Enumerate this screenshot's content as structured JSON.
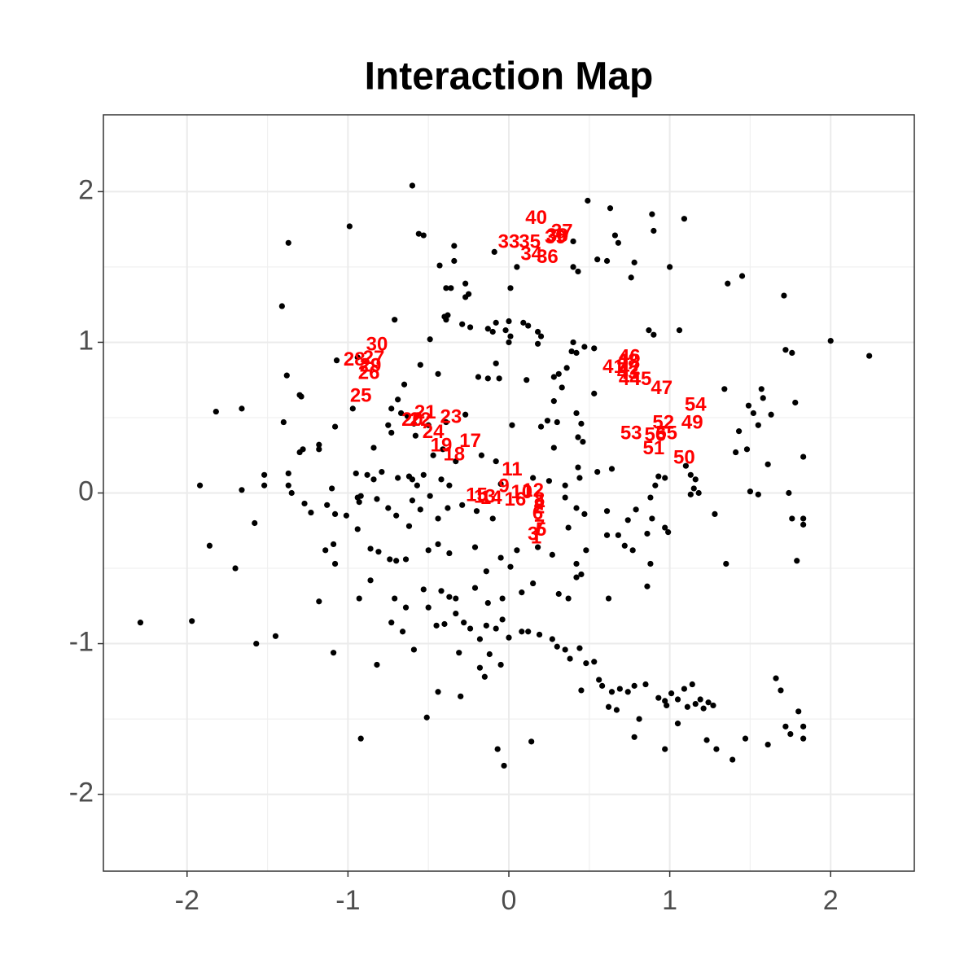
{
  "chart_data": {
    "type": "scatter",
    "title": "Interaction Map",
    "xlim": [
      -2.52,
      2.52
    ],
    "ylim": [
      -2.51,
      2.51
    ],
    "xticks": [
      -2,
      -1,
      0,
      1,
      2
    ],
    "yticks": [
      -2,
      -1,
      0,
      1,
      2
    ],
    "xminor": [
      -1.5,
      -0.5,
      0.5,
      1.5
    ],
    "yminor": [
      -1.5,
      -0.5,
      0.5,
      1.5
    ],
    "grid": true,
    "series": [
      {
        "color": "#000000",
        "x": [
          -0.6,
          -1.37,
          -0.99,
          -0.56,
          -0.53,
          0.49,
          0.63,
          0.89,
          1.09,
          0.66,
          0.68,
          0.9,
          0.4,
          -0.34,
          -0.09,
          0.05,
          -0.43,
          -0.34,
          0.4,
          0.55,
          0.61,
          0.78,
          1.0,
          0.43,
          0.76,
          1.36,
          1.45,
          1.71,
          -0.39,
          -0.36,
          -0.27,
          -0.25,
          -0.27,
          0.01,
          -1.41,
          -0.71,
          -0.4,
          -0.38,
          -0.39,
          -0.29,
          -0.24,
          -0.13,
          -0.1,
          -0.08,
          0.0,
          -0.02,
          0.01,
          0.0,
          0.09,
          0.12,
          0.18,
          0.18,
          0.2,
          -0.49,
          0.4,
          0.39,
          0.42,
          0.47,
          0.53,
          0.87,
          0.9,
          1.06,
          1.72,
          1.76,
          2.0,
          2.24,
          -1.07,
          -0.94,
          -0.55,
          -0.44,
          -0.08,
          -0.13,
          -0.06,
          -0.19,
          0.11,
          0.36,
          0.31,
          0.28,
          -1.38,
          -1.3,
          -1.29,
          -0.65,
          -0.69,
          -1.82,
          -1.66,
          -1.4,
          -1.08,
          -0.97,
          -0.73,
          -0.67,
          -0.63,
          -0.59,
          -0.5,
          -0.39,
          -0.27,
          0.02,
          0.2,
          0.24,
          0.3,
          0.42,
          0.45,
          0.28,
          0.33,
          0.53,
          1.34,
          1.57,
          1.58,
          1.49,
          1.52,
          1.63,
          1.78,
          1.43,
          1.55,
          -1.18,
          -1.18,
          -1.28,
          -1.3,
          -0.84,
          -0.75,
          -0.73,
          -0.58,
          -0.47,
          -0.41,
          -0.33,
          -0.17,
          -0.08,
          0.28,
          0.43,
          0.46,
          0.43,
          0.44,
          0.55,
          0.64,
          0.93,
          0.97,
          1.1,
          1.13,
          1.16,
          1.41,
          1.48,
          1.61,
          1.83,
          -1.37,
          -1.37,
          -1.52,
          -1.52,
          -1.92,
          -1.66,
          -0.95,
          -0.88,
          -0.84,
          -0.79,
          -0.69,
          -0.62,
          -0.6,
          -0.53,
          -0.57,
          -0.42,
          -0.37,
          -0.05,
          0.15,
          0.25,
          0.35,
          1.15,
          1.18,
          1.13,
          0.91,
          0.88,
          1.5,
          1.55,
          1.74,
          -1.35,
          -1.27,
          -1.23,
          -1.13,
          -1.1,
          -1.08,
          -1.01,
          -0.94,
          -0.93,
          -0.92,
          -0.82,
          -0.75,
          -0.7,
          -0.6,
          -0.55,
          -0.49,
          -0.44,
          -0.38,
          -0.29,
          -0.2,
          -0.1,
          0.35,
          0.42,
          0.47,
          0.61,
          0.74,
          0.79,
          0.89,
          0.97,
          1.28,
          1.76,
          1.83,
          1.83,
          -1.58,
          -1.86,
          -1.7,
          -1.14,
          -1.09,
          -1.08,
          -0.94,
          -0.86,
          -0.81,
          -0.74,
          -0.7,
          -0.64,
          -0.62,
          -0.5,
          -0.44,
          -0.37,
          -0.21,
          -0.05,
          0.01,
          0.05,
          0.18,
          0.27,
          0.37,
          0.42,
          0.48,
          0.61,
          0.68,
          0.72,
          0.77,
          0.86,
          0.88,
          0.99,
          1.35,
          1.79,
          -1.18,
          -0.93,
          -0.86,
          -0.71,
          -0.64,
          -0.53,
          -0.42,
          -0.37,
          -0.33,
          -0.21,
          -0.14,
          -0.13,
          -0.04,
          0.08,
          0.15,
          0.31,
          0.37,
          0.42,
          0.45,
          0.62,
          0.86,
          -1.45,
          -1.57,
          -2.29,
          -1.97,
          -1.09,
          -0.82,
          -0.73,
          -0.66,
          -0.59,
          -0.5,
          -0.45,
          -0.4,
          -0.33,
          -0.28,
          -0.24,
          -0.18,
          -0.14,
          -0.08,
          -0.04,
          0.0,
          0.08,
          0.12,
          0.19,
          0.27,
          0.3,
          0.35,
          0.38,
          0.44,
          0.48,
          0.53,
          0.56,
          0.58,
          0.64,
          0.69,
          0.74,
          0.78,
          0.85,
          0.93,
          0.97,
          1.01,
          1.05,
          1.09,
          1.11,
          1.14,
          1.16,
          1.19,
          1.21,
          1.24,
          1.27,
          0.45,
          0.62,
          0.67,
          0.81,
          0.98,
          1.05,
          1.66,
          1.69,
          1.72,
          1.75,
          1.8,
          1.83,
          1.83,
          1.61,
          1.47,
          1.39,
          1.29,
          1.23,
          0.97,
          0.78,
          -0.92,
          -0.51,
          -0.44,
          -0.3,
          -0.15,
          -0.07,
          -0.03,
          0.14,
          -0.12,
          -0.05,
          -0.18,
          -0.31
        ],
        "y": [
          2.04,
          1.66,
          1.77,
          1.72,
          1.71,
          1.94,
          1.89,
          1.85,
          1.82,
          1.71,
          1.66,
          1.74,
          1.67,
          1.64,
          1.6,
          1.5,
          1.51,
          1.54,
          1.5,
          1.55,
          1.54,
          1.53,
          1.5,
          1.47,
          1.43,
          1.39,
          1.44,
          1.31,
          1.36,
          1.36,
          1.39,
          1.32,
          1.3,
          1.36,
          1.24,
          1.15,
          1.17,
          1.18,
          1.15,
          1.12,
          1.1,
          1.09,
          1.07,
          1.13,
          1.14,
          1.08,
          1.04,
          1.0,
          1.13,
          1.11,
          1.07,
          0.99,
          1.04,
          1.02,
          1.0,
          0.94,
          0.93,
          0.97,
          0.96,
          1.08,
          1.05,
          1.08,
          0.95,
          0.93,
          1.01,
          0.91,
          0.88,
          0.9,
          0.85,
          0.79,
          0.86,
          0.76,
          0.76,
          0.77,
          0.75,
          0.83,
          0.79,
          0.77,
          0.78,
          0.65,
          0.64,
          0.72,
          0.62,
          0.54,
          0.56,
          0.47,
          0.44,
          0.56,
          0.56,
          0.53,
          0.51,
          0.46,
          0.45,
          0.47,
          0.52,
          0.45,
          0.44,
          0.48,
          0.47,
          0.53,
          0.46,
          0.61,
          0.7,
          0.66,
          0.69,
          0.69,
          0.63,
          0.58,
          0.53,
          0.52,
          0.6,
          0.41,
          0.45,
          0.32,
          0.29,
          0.29,
          0.27,
          0.3,
          0.45,
          0.4,
          0.38,
          0.25,
          0.29,
          0.21,
          0.25,
          0.21,
          0.3,
          0.37,
          0.34,
          0.17,
          0.1,
          0.14,
          0.16,
          0.11,
          0.1,
          0.18,
          0.12,
          0.09,
          0.27,
          0.29,
          0.19,
          0.24,
          0.13,
          0.05,
          0.12,
          0.05,
          0.05,
          0.02,
          0.13,
          0.12,
          0.09,
          0.14,
          0.1,
          0.11,
          0.09,
          0.12,
          0.05,
          0.09,
          0.05,
          0.06,
          0.1,
          0.08,
          0.05,
          0.03,
          0.0,
          -0.01,
          0.05,
          -0.03,
          0.01,
          -0.01,
          0.0,
          0.0,
          -0.07,
          -0.13,
          -0.08,
          0.03,
          -0.14,
          -0.15,
          -0.03,
          -0.06,
          -0.02,
          -0.04,
          -0.1,
          -0.15,
          -0.05,
          -0.11,
          -0.02,
          -0.17,
          -0.1,
          -0.08,
          -0.12,
          -0.17,
          -0.03,
          -0.1,
          -0.14,
          -0.12,
          -0.18,
          -0.11,
          -0.17,
          -0.23,
          -0.14,
          -0.17,
          -0.17,
          -0.21,
          -0.2,
          -0.35,
          -0.5,
          -0.38,
          -0.34,
          -0.47,
          -0.24,
          -0.37,
          -0.39,
          -0.44,
          -0.45,
          -0.44,
          -0.22,
          -0.38,
          -0.34,
          -0.4,
          -0.36,
          -0.43,
          -0.49,
          -0.38,
          -0.36,
          -0.41,
          -0.23,
          -0.47,
          -0.38,
          -0.28,
          -0.28,
          -0.35,
          -0.38,
          -0.27,
          -0.47,
          -0.26,
          -0.47,
          -0.45,
          -0.72,
          -0.7,
          -0.58,
          -0.7,
          -0.76,
          -0.64,
          -0.65,
          -0.69,
          -0.7,
          -0.63,
          -0.52,
          -0.73,
          -0.7,
          -0.66,
          -0.6,
          -0.67,
          -0.7,
          -0.56,
          -0.54,
          -0.7,
          -0.62,
          -0.95,
          -1.0,
          -0.86,
          -0.85,
          -1.06,
          -1.14,
          -0.86,
          -0.92,
          -1.04,
          -0.76,
          -0.88,
          -0.87,
          -0.8,
          -0.86,
          -0.9,
          -0.97,
          -0.88,
          -0.9,
          -0.84,
          -0.96,
          -0.92,
          -0.92,
          -0.94,
          -0.97,
          -1.02,
          -1.04,
          -1.1,
          -1.03,
          -1.13,
          -1.12,
          -1.24,
          -1.28,
          -1.32,
          -1.3,
          -1.32,
          -1.28,
          -1.27,
          -1.36,
          -1.38,
          -1.33,
          -1.37,
          -1.3,
          -1.42,
          -1.27,
          -1.4,
          -1.37,
          -1.43,
          -1.39,
          -1.41,
          -1.31,
          -1.42,
          -1.44,
          -1.5,
          -1.41,
          -1.53,
          -1.23,
          -1.31,
          -1.55,
          -1.6,
          -1.45,
          -1.55,
          -1.63,
          -1.67,
          -1.63,
          -1.77,
          -1.7,
          -1.64,
          -1.7,
          -1.62,
          -1.63,
          -1.49,
          -1.32,
          -1.35,
          -1.22,
          -1.7,
          -1.81,
          -1.65,
          -1.07,
          -1.14,
          -1.16,
          -1.06
        ]
      }
    ],
    "labels": {
      "color": "#ff0000",
      "text": [
        "1",
        "2",
        "3",
        "4",
        "5",
        "6",
        "7",
        "8",
        "9",
        "10",
        "11",
        "12",
        "13",
        "14",
        "15",
        "16",
        "17",
        "18",
        "19",
        "20",
        "21",
        "22",
        "23",
        "24",
        "25",
        "26",
        "27",
        "28",
        "29",
        "30",
        "33",
        "34",
        "35",
        "36",
        "37",
        "38",
        "39",
        "40",
        "41",
        "42",
        "43",
        "44",
        "45",
        "46",
        "47",
        "48",
        "49",
        "50",
        "51",
        "52",
        "53",
        "54",
        "55",
        "56"
      ],
      "x": [
        0.17,
        0.19,
        0.15,
        0.19,
        0.2,
        0.18,
        0.19,
        0.19,
        -0.03,
        0.08,
        0.02,
        0.15,
        -0.15,
        -0.11,
        -0.2,
        0.04,
        -0.24,
        -0.34,
        -0.42,
        -0.6,
        -0.52,
        -0.55,
        -0.36,
        -0.47,
        -0.92,
        -0.87,
        -0.84,
        -0.96,
        -0.86,
        -0.82,
        0.0,
        0.14,
        0.13,
        0.24,
        0.33,
        0.3,
        0.29,
        0.17,
        0.65,
        0.75,
        0.74,
        0.75,
        0.82,
        0.75,
        0.95,
        0.74,
        1.14,
        1.09,
        0.9,
        0.96,
        0.76,
        1.16,
        0.98,
        0.91
      ],
      "y": [
        -0.3,
        -0.1,
        -0.28,
        -0.08,
        -0.25,
        -0.14,
        -0.23,
        -0.05,
        0.04,
        0.0,
        0.15,
        0.01,
        -0.03,
        -0.04,
        -0.02,
        -0.05,
        0.34,
        0.25,
        0.31,
        0.48,
        0.53,
        0.48,
        0.5,
        0.4,
        0.64,
        0.79,
        0.89,
        0.88,
        0.84,
        0.98,
        1.66,
        1.58,
        1.66,
        1.56,
        1.73,
        1.7,
        1.69,
        1.82,
        0.83,
        0.82,
        0.79,
        0.75,
        0.75,
        0.9,
        0.69,
        0.87,
        0.46,
        0.23,
        0.29,
        0.46,
        0.39,
        0.58,
        0.39,
        0.38
      ]
    }
  }
}
